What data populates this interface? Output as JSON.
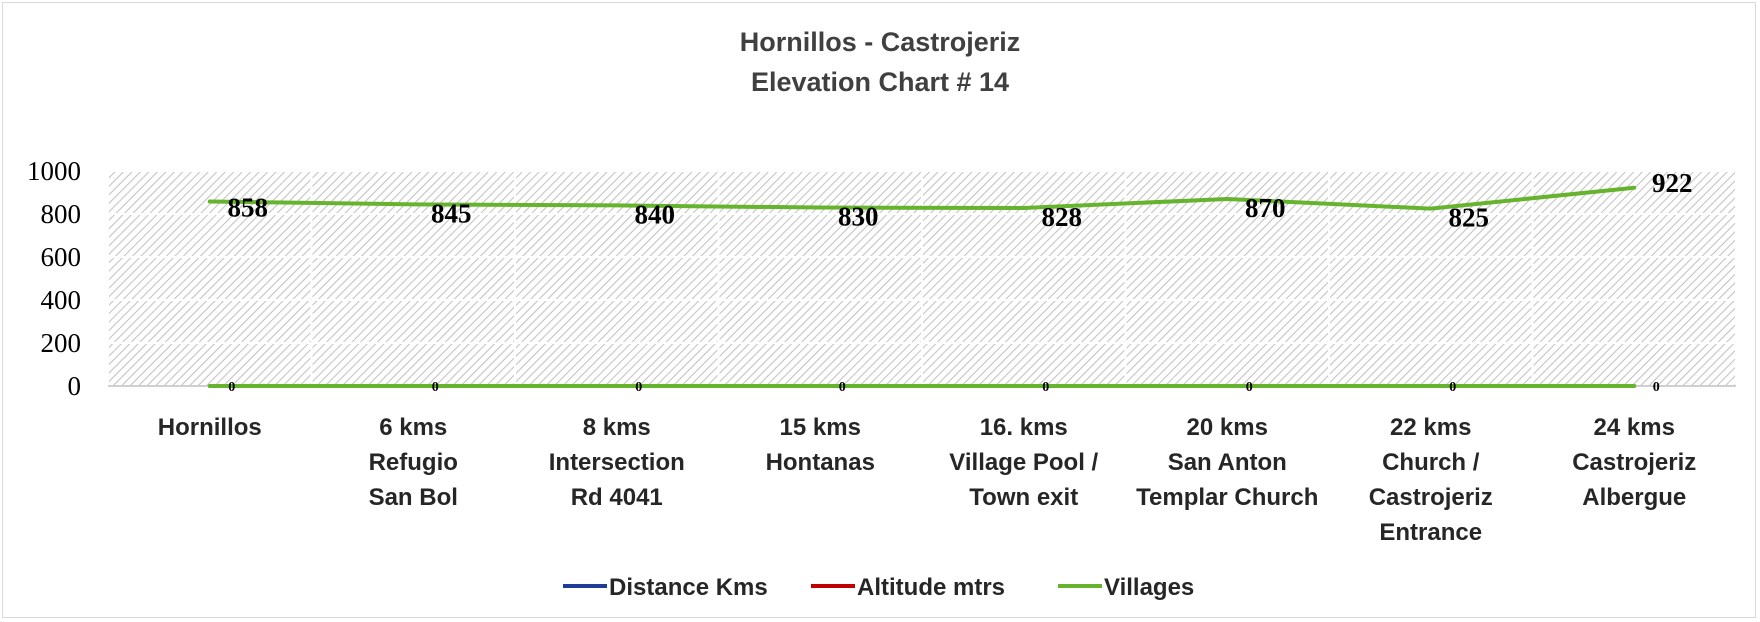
{
  "chart_data": {
    "type": "line",
    "title": [
      "Hornillos - Castrojeriz",
      "Elevation Chart # 14"
    ],
    "categories": [
      [
        "Hornillos"
      ],
      [
        "6  kms",
        "Refugio",
        "San Bol"
      ],
      [
        "8  kms",
        "Intersection",
        "Rd 4041"
      ],
      [
        "15  kms",
        "Hontanas"
      ],
      [
        "16. kms",
        "Village Pool /",
        "Town exit"
      ],
      [
        "20 kms",
        "San Anton",
        "Templar Church"
      ],
      [
        "22 kms",
        "Church  /",
        "Castrojeriz",
        "Entrance"
      ],
      [
        "24 kms",
        "Castrojeriz",
        "Albergue"
      ]
    ],
    "y_ticks": [
      0,
      200,
      400,
      600,
      800,
      1000
    ],
    "ylim": [
      0,
      1000
    ],
    "grid": true,
    "legend_position": "bottom",
    "series": [
      {
        "name": "Distance  Kms",
        "color": "#1f3c99",
        "values": null
      },
      {
        "name": "Altitude  mtrs",
        "color": "#c00000",
        "values": null
      },
      {
        "name": "Villages",
        "color": "#66b32e",
        "values": [
          0,
          0,
          0,
          0,
          0,
          0,
          0,
          0
        ]
      },
      {
        "name": "",
        "color": "#66b32e",
        "values": [
          858,
          845,
          840,
          830,
          828,
          870,
          825,
          922
        ]
      }
    ]
  }
}
